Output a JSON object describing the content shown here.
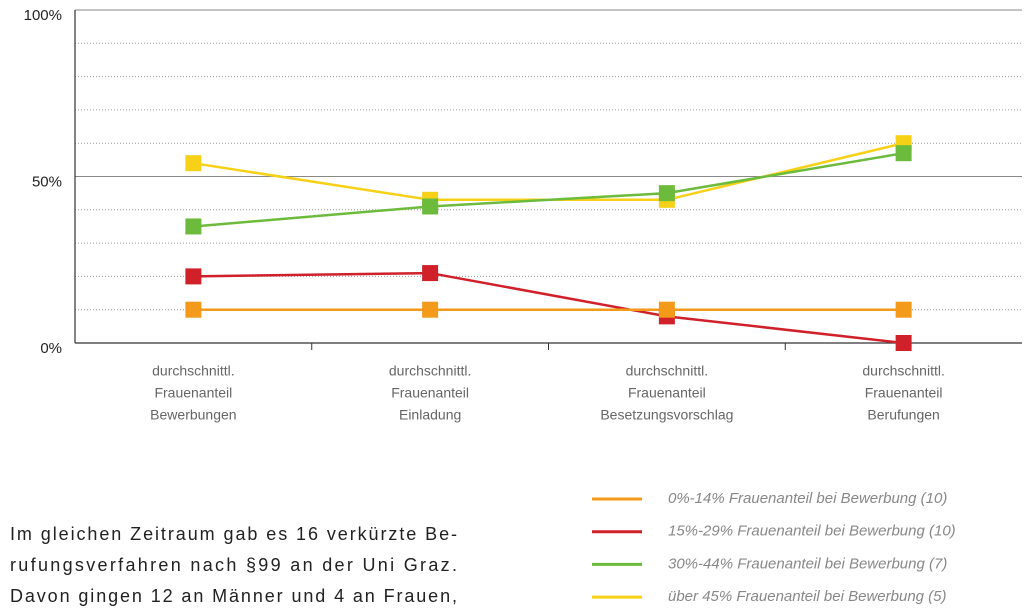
{
  "chart_data": {
    "type": "line",
    "categories": [
      [
        "durchschnittl.",
        "Frauenanteil",
        "Bewerbungen"
      ],
      [
        "durchschnittl.",
        "Frauenanteil",
        "Einladung"
      ],
      [
        "durchschnittl.",
        "Frauenanteil",
        "Besetzungsvorschlag"
      ],
      [
        "durchschnittl.",
        "Frauenanteil",
        "Berufungen"
      ]
    ],
    "series": [
      {
        "name": "0%-14% Frauenanteil bei Bewerbung (10)",
        "color": "#f39a1a",
        "values": [
          10,
          10,
          10,
          10
        ]
      },
      {
        "name": "15%-29% Frauenanteil bei Bewerbung (10)",
        "color": "#d0202a",
        "values": [
          20,
          21,
          8,
          0
        ]
      },
      {
        "name": "30%-44% Frauenanteil bei Bewerbung (7)",
        "color": "#6cbb3c",
        "values": [
          35,
          41,
          45,
          57
        ]
      },
      {
        "name": "über 45% Frauenanteil bei Bewerbung (5)",
        "color": "#f7d117",
        "values": [
          54,
          43,
          43,
          60
        ]
      }
    ],
    "ylim": [
      0,
      100
    ],
    "yticks": [
      {
        "value": 0,
        "label": "0%"
      },
      {
        "value": 50,
        "label": "50%"
      },
      {
        "value": 100,
        "label": "100%"
      }
    ],
    "minor_yticks": [
      10,
      20,
      30,
      40,
      60,
      70,
      80,
      90
    ],
    "grid": true
  },
  "paragraph": {
    "lines": [
      "Im gleichen Zeitraum gab es 16 verkürzte Be-",
      "rufungsverfahren nach §99 an der Uni Graz.",
      "Davon gingen 12 an Männer und 4 an Frauen,"
    ]
  }
}
